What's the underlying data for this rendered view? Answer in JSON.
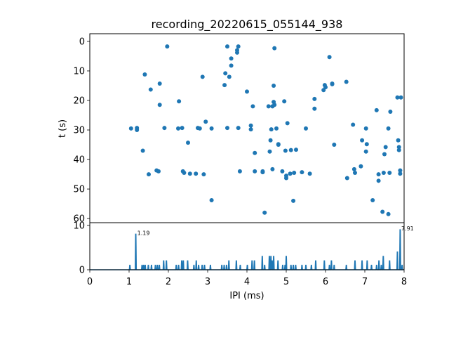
{
  "chart_data": [
    {
      "type": "scatter",
      "title": "recording_20220615_055144_938",
      "xlabel": "",
      "ylabel": "t (s)",
      "xlim": [
        0,
        8
      ],
      "ylim": [
        61.4,
        -2.6
      ],
      "y_inverted": true,
      "yticks": [
        0,
        10,
        20,
        30,
        40,
        50,
        60
      ],
      "color": "#1f77b4",
      "points": [
        [
          1.05,
          29.5
        ],
        [
          1.2,
          29.3
        ],
        [
          1.2,
          30
        ],
        [
          1.35,
          37
        ],
        [
          1.4,
          11.2
        ],
        [
          1.5,
          45
        ],
        [
          1.55,
          16.3
        ],
        [
          1.7,
          43.7
        ],
        [
          1.75,
          44
        ],
        [
          1.78,
          14.3
        ],
        [
          1.78,
          21.5
        ],
        [
          1.9,
          29.3
        ],
        [
          1.97,
          1.7
        ],
        [
          2.25,
          29.5
        ],
        [
          2.27,
          20.3
        ],
        [
          2.35,
          29.3
        ],
        [
          2.37,
          44
        ],
        [
          2.4,
          44.5
        ],
        [
          2.5,
          34.3
        ],
        [
          2.55,
          44.8
        ],
        [
          2.7,
          44.8
        ],
        [
          2.75,
          29.3
        ],
        [
          2.8,
          29.5
        ],
        [
          2.87,
          12
        ],
        [
          2.9,
          45
        ],
        [
          2.95,
          27.2
        ],
        [
          3.1,
          53.8
        ],
        [
          3.1,
          29.5
        ],
        [
          3.43,
          14.8
        ],
        [
          3.45,
          10.8
        ],
        [
          3.5,
          1.7
        ],
        [
          3.5,
          29.3
        ],
        [
          3.55,
          12
        ],
        [
          3.6,
          5.8
        ],
        [
          3.6,
          8.2
        ],
        [
          3.75,
          3
        ],
        [
          3.75,
          3.8
        ],
        [
          3.78,
          1.7
        ],
        [
          3.78,
          29.3
        ],
        [
          3.82,
          44
        ],
        [
          4.0,
          17
        ],
        [
          4.1,
          28.5
        ],
        [
          4.1,
          29.8
        ],
        [
          4.15,
          22
        ],
        [
          4.2,
          37.8
        ],
        [
          4.2,
          44
        ],
        [
          4.4,
          44
        ],
        [
          4.4,
          44.3
        ],
        [
          4.45,
          58
        ],
        [
          4.55,
          22
        ],
        [
          4.58,
          37.3
        ],
        [
          4.6,
          33.5
        ],
        [
          4.62,
          29.8
        ],
        [
          4.65,
          22
        ],
        [
          4.65,
          43.3
        ],
        [
          4.68,
          20.5
        ],
        [
          4.68,
          15
        ],
        [
          4.7,
          2.3
        ],
        [
          4.7,
          21.5
        ],
        [
          4.75,
          29.5
        ],
        [
          4.8,
          35
        ],
        [
          4.8,
          34.8
        ],
        [
          4.9,
          44
        ],
        [
          4.95,
          20.3
        ],
        [
          4.98,
          37
        ],
        [
          5.0,
          46.3
        ],
        [
          5.0,
          45.5
        ],
        [
          5.03,
          27.7
        ],
        [
          5.1,
          44.8
        ],
        [
          5.12,
          36.8
        ],
        [
          5.18,
          54
        ],
        [
          5.2,
          44.5
        ],
        [
          5.25,
          36.7
        ],
        [
          5.4,
          44.3
        ],
        [
          5.5,
          29.5
        ],
        [
          5.6,
          44.8
        ],
        [
          5.72,
          22.8
        ],
        [
          5.72,
          19.5
        ],
        [
          5.95,
          16.5
        ],
        [
          5.98,
          14.8
        ],
        [
          6.0,
          15.5
        ],
        [
          6.1,
          5.3
        ],
        [
          6.17,
          14.3
        ],
        [
          6.17,
          14.5
        ],
        [
          6.22,
          35
        ],
        [
          6.53,
          13.7
        ],
        [
          6.55,
          46.3
        ],
        [
          6.7,
          28.2
        ],
        [
          6.73,
          43.3
        ],
        [
          6.75,
          44.5
        ],
        [
          6.9,
          42.3
        ],
        [
          6.93,
          33.5
        ],
        [
          7.03,
          29.5
        ],
        [
          7.03,
          37.3
        ],
        [
          7.05,
          34.8
        ],
        [
          7.2,
          53.8
        ],
        [
          7.3,
          23.3
        ],
        [
          7.35,
          47.2
        ],
        [
          7.35,
          45
        ],
        [
          7.45,
          57.7
        ],
        [
          7.48,
          44.5
        ],
        [
          7.5,
          38.2
        ],
        [
          7.53,
          35.8
        ],
        [
          7.6,
          29.5
        ],
        [
          7.6,
          58.5
        ],
        [
          7.63,
          44.5
        ],
        [
          7.65,
          23.8
        ],
        [
          7.83,
          19
        ],
        [
          7.85,
          33.5
        ],
        [
          7.87,
          35.8
        ],
        [
          7.87,
          36.8
        ],
        [
          7.9,
          44.8
        ],
        [
          7.9,
          43.7
        ],
        [
          7.92,
          19
        ]
      ]
    },
    {
      "type": "line",
      "xlabel": "IPI (ms)",
      "ylabel": "",
      "xlim": [
        0,
        8
      ],
      "ylim": [
        0,
        10.6
      ],
      "xticks": [
        0,
        1,
        2,
        3,
        4,
        5,
        6,
        7,
        8
      ],
      "yticks": [
        0,
        10
      ],
      "color": "#1f77b4",
      "spikes": [
        [
          1.02,
          1
        ],
        [
          1.17,
          8
        ],
        [
          1.33,
          1
        ],
        [
          1.37,
          1
        ],
        [
          1.41,
          1
        ],
        [
          1.49,
          1
        ],
        [
          1.57,
          1
        ],
        [
          1.67,
          1
        ],
        [
          1.72,
          1
        ],
        [
          1.77,
          1
        ],
        [
          1.88,
          2
        ],
        [
          1.95,
          2
        ],
        [
          2.2,
          1
        ],
        [
          2.26,
          1
        ],
        [
          2.34,
          2
        ],
        [
          2.38,
          2
        ],
        [
          2.49,
          2
        ],
        [
          2.65,
          1
        ],
        [
          2.71,
          2
        ],
        [
          2.77,
          1
        ],
        [
          2.86,
          1
        ],
        [
          2.92,
          1
        ],
        [
          3.07,
          1
        ],
        [
          3.36,
          1
        ],
        [
          3.42,
          1
        ],
        [
          3.48,
          1
        ],
        [
          3.54,
          2
        ],
        [
          3.73,
          2
        ],
        [
          3.83,
          1
        ],
        [
          4.01,
          1
        ],
        [
          4.13,
          2
        ],
        [
          4.19,
          2
        ],
        [
          4.39,
          3
        ],
        [
          4.45,
          1
        ],
        [
          4.57,
          3
        ],
        [
          4.61,
          3
        ],
        [
          4.64,
          2
        ],
        [
          4.68,
          3
        ],
        [
          4.79,
          2
        ],
        [
          4.91,
          1
        ],
        [
          4.97,
          1
        ],
        [
          5.0,
          3
        ],
        [
          5.12,
          1
        ],
        [
          5.18,
          1
        ],
        [
          5.24,
          1
        ],
        [
          5.4,
          1
        ],
        [
          5.5,
          1
        ],
        [
          5.64,
          1
        ],
        [
          5.75,
          2
        ],
        [
          5.97,
          2
        ],
        [
          6.1,
          1
        ],
        [
          6.15,
          2
        ],
        [
          6.22,
          1
        ],
        [
          6.53,
          1
        ],
        [
          6.75,
          2
        ],
        [
          6.93,
          2
        ],
        [
          7.06,
          2
        ],
        [
          7.17,
          1
        ],
        [
          7.3,
          1
        ],
        [
          7.36,
          2
        ],
        [
          7.42,
          1
        ],
        [
          7.47,
          3
        ],
        [
          7.63,
          2
        ],
        [
          7.83,
          4
        ],
        [
          7.9,
          9
        ],
        [
          7.95,
          1
        ]
      ],
      "annotations": [
        {
          "x": 1.19,
          "y": 8,
          "text": "1.19"
        },
        {
          "x": 7.91,
          "y": 9,
          "text": "7.91"
        }
      ]
    }
  ]
}
